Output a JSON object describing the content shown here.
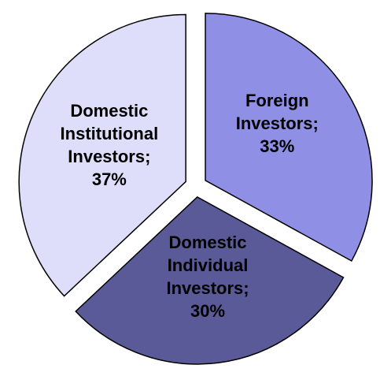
{
  "chart_data": {
    "type": "pie",
    "categories": [
      "Foreign Investors;",
      "Domestic Individual Investors;",
      "Domestic Institutional Investors;"
    ],
    "values": [
      33,
      30,
      37
    ],
    "value_labels": [
      "33%",
      "30%",
      "37%"
    ],
    "colors": [
      "#8f8fe6",
      "#5a5a98",
      "#dedefa"
    ]
  }
}
